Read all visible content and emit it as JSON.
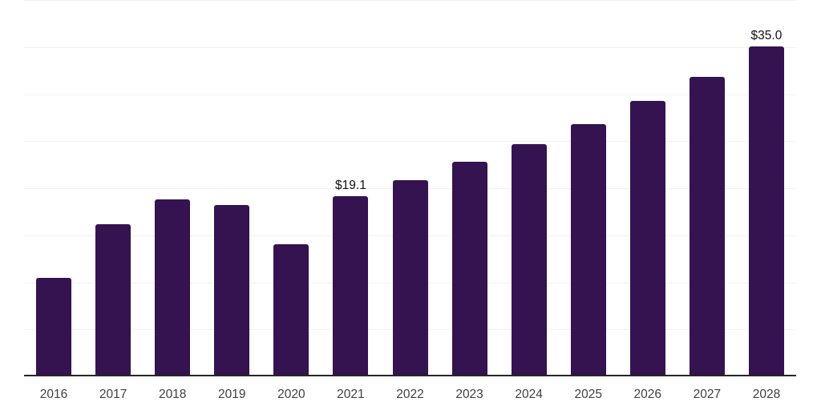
{
  "chart_data": {
    "type": "bar",
    "title": "",
    "xlabel": "",
    "ylabel": "",
    "categories": [
      "2016",
      "2017",
      "2018",
      "2019",
      "2020",
      "2021",
      "2022",
      "2023",
      "2024",
      "2025",
      "2026",
      "2027",
      "2028"
    ],
    "series": [
      {
        "name": "market-size",
        "values": [
          10.4,
          16.1,
          18.7,
          18.1,
          14.0,
          19.1,
          20.8,
          22.7,
          24.6,
          26.7,
          29.2,
          31.8,
          35.0
        ]
      }
    ],
    "data_labels": [
      {
        "category": "2021",
        "text": "$19.1"
      },
      {
        "category": "2028",
        "text": "$35.0"
      }
    ],
    "ylim": [
      0,
      40
    ],
    "gridline_values": [
      5,
      10,
      15,
      20,
      25,
      30,
      35,
      40
    ],
    "grid": "horizontal",
    "legend_position": "none",
    "y_axis_tick_labels_visible": false,
    "colors": {
      "bar": "#351250",
      "axis_line": "#262626",
      "gridline": "#f1f1f1",
      "data_label_text": "#111111",
      "tick_label_text": "#404040",
      "background": "#ffffff"
    }
  }
}
